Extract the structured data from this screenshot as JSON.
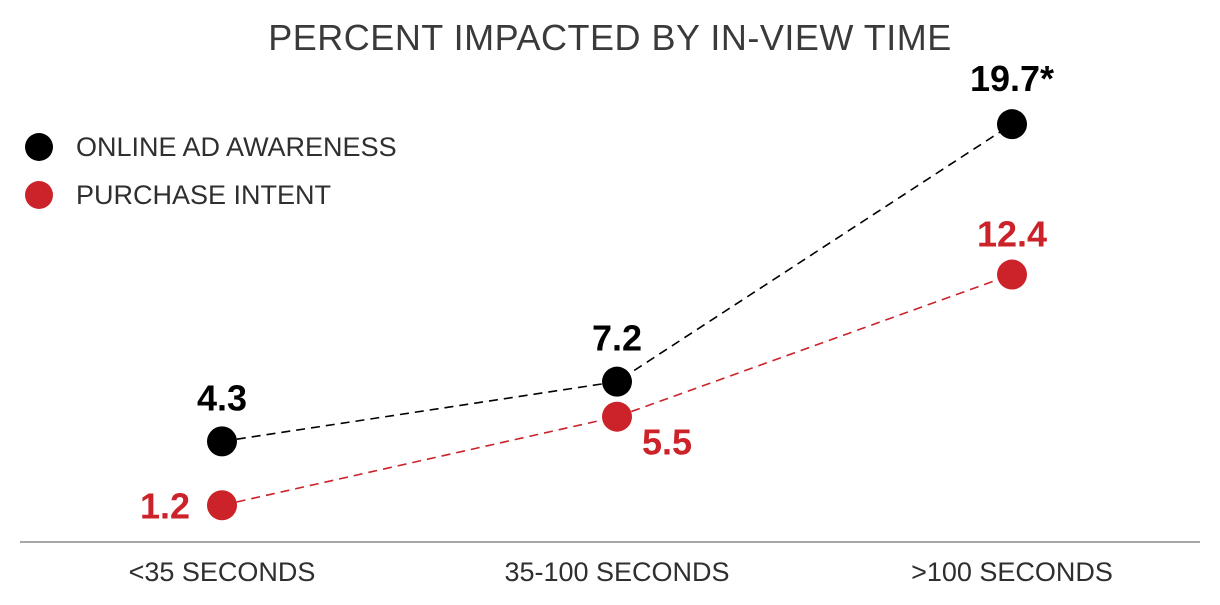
{
  "chart_data": {
    "type": "line",
    "title": "PERCENT IMPACTED BY IN-VIEW TIME",
    "categories": [
      "<35 SECONDS",
      "35-100 SECONDS",
      ">100 SECONDS"
    ],
    "series": [
      {
        "name": "ONLINE AD AWARENESS",
        "color": "#000000",
        "values": [
          4.3,
          7.2,
          19.7
        ],
        "labels": [
          "4.3",
          "7.2",
          "19.7*"
        ]
      },
      {
        "name": "PURCHASE INTENT",
        "color": "#cc2229",
        "values": [
          1.2,
          5.5,
          12.4
        ],
        "labels": [
          "1.2",
          "5.5",
          "12.4"
        ]
      }
    ],
    "xlabel": "",
    "ylabel": "",
    "ylim": [
      0,
      20
    ],
    "grid": false,
    "legend": "top-left",
    "line_style": "dashed"
  }
}
